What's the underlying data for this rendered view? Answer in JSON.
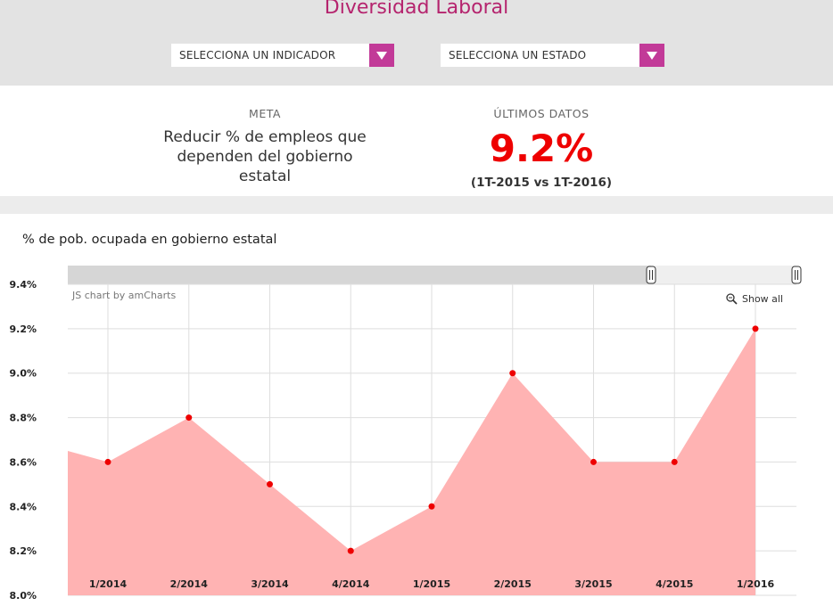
{
  "header": {
    "title": "Diversidad Laboral",
    "indicator_select": "SELECCIONA UN INDICADOR",
    "state_select": "SELECCIONA UN ESTADO"
  },
  "meta": {
    "label": "META",
    "text": "Reducir % de empleos que dependen del gobierno estatal"
  },
  "ultimos": {
    "label": "ÚLTIMOS DATOS",
    "value": "9.2%",
    "sub": "(1T-2015 vs 1T-2016)"
  },
  "chart_controls": {
    "credit": "JS chart by amCharts",
    "show_all": "Show all",
    "zoom_icon": "magnifier-icon"
  },
  "colors": {
    "brand": "#b5246e",
    "dropdown": "#c23a98",
    "highlight": "#ee0000",
    "area_fill": "#ffb3b3",
    "point": "#ee0000"
  },
  "chart_data": {
    "type": "area",
    "title": "% de pob. ocupada en gobierno estatal",
    "categories": [
      "1/2014",
      "2/2014",
      "3/2014",
      "4/2014",
      "1/2015",
      "2/2015",
      "3/2015",
      "4/2015",
      "1/2016"
    ],
    "series": [
      {
        "values": [
          8.6,
          8.8,
          8.5,
          8.2,
          8.4,
          9.0,
          8.6,
          8.6,
          9.2
        ]
      }
    ],
    "left_edge_value": 8.65,
    "ylim": [
      8.0,
      9.4
    ],
    "yticks": [
      "8.0%",
      "8.2%",
      "8.4%",
      "8.6%",
      "8.8%",
      "9.0%",
      "9.2%",
      "9.4%"
    ],
    "ytick_values": [
      8.0,
      8.2,
      8.4,
      8.6,
      8.8,
      9.0,
      9.2,
      9.4
    ],
    "grid": true,
    "scrollbar": true
  }
}
